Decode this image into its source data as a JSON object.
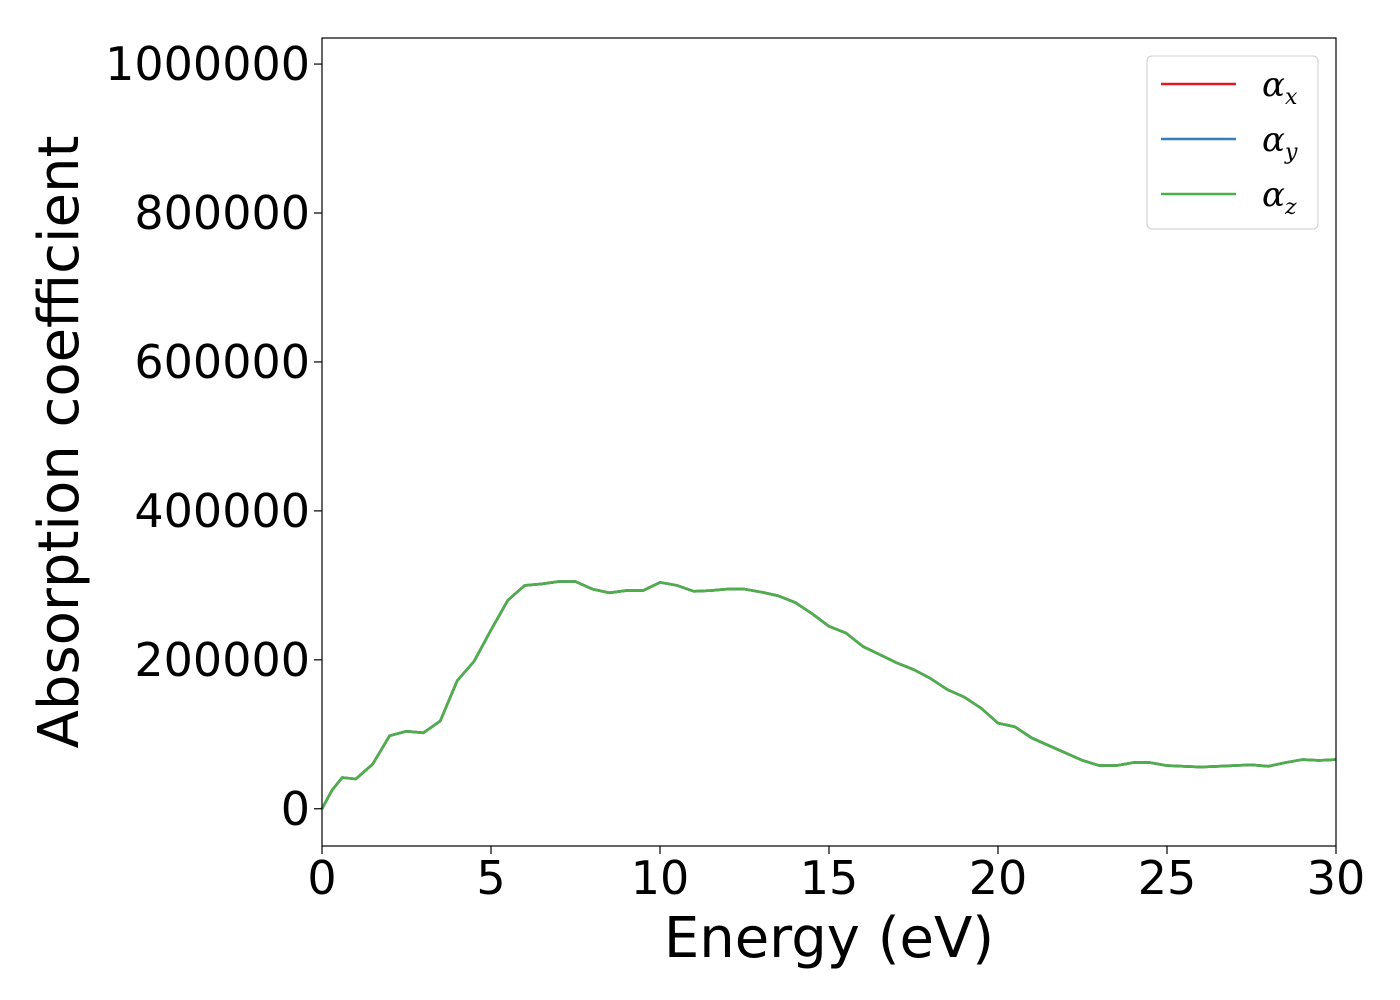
{
  "chart_data": {
    "type": "line",
    "xlabel": "Energy (eV)",
    "ylabel": "Absorption coefficient",
    "xlim": [
      0,
      30
    ],
    "ylim": [
      -50000,
      1035000
    ],
    "xticks": [
      0,
      5,
      10,
      15,
      20,
      25,
      30
    ],
    "xtick_labels": [
      "0",
      "5",
      "10",
      "15",
      "20",
      "25",
      "30"
    ],
    "yticks": [
      0,
      200000,
      400000,
      600000,
      800000,
      1000000
    ],
    "ytick_labels": [
      "0",
      "200000",
      "400000",
      "600000",
      "800000",
      "1000000"
    ],
    "grid": false,
    "legend_position": "top-right",
    "x": [
      0,
      0.3,
      0.6,
      1.0,
      1.5,
      2.0,
      2.5,
      3.0,
      3.5,
      4.0,
      4.5,
      5.0,
      5.5,
      6.0,
      6.5,
      7.0,
      7.5,
      8.0,
      8.5,
      9.0,
      9.5,
      10.0,
      10.5,
      11.0,
      11.5,
      12.0,
      12.5,
      13.0,
      13.5,
      14.0,
      14.5,
      15.0,
      15.5,
      16.0,
      16.5,
      17.0,
      17.5,
      18.0,
      18.5,
      19.0,
      19.5,
      20.0,
      20.5,
      21.0,
      21.5,
      22.0,
      22.5,
      23.0,
      23.5,
      24.0,
      24.5,
      25.0,
      25.5,
      26.0,
      26.5,
      27.0,
      27.5,
      28.0,
      28.5,
      29.0,
      29.5,
      30.0
    ],
    "series": [
      {
        "name": "α_x",
        "color": "#e41a1c",
        "values": [
          0,
          25000,
          42000,
          40000,
          60000,
          98000,
          104000,
          102000,
          118000,
          172000,
          198000,
          240000,
          280000,
          300000,
          302000,
          305000,
          305000,
          295000,
          290000,
          293000,
          293000,
          304000,
          300000,
          292000,
          293000,
          295000,
          295000,
          291000,
          286000,
          277000,
          262000,
          245000,
          236000,
          218000,
          207000,
          196000,
          187000,
          175000,
          160000,
          150000,
          135000,
          115000,
          110000,
          95000,
          85000,
          75000,
          65000,
          58000,
          58000,
          62000,
          62000,
          58000,
          57000,
          56000,
          57000,
          58000,
          59000,
          57000,
          62000,
          66000,
          65000,
          66000
        ]
      },
      {
        "name": "α_y",
        "color": "#377eb8",
        "values": [
          0,
          25000,
          42000,
          40000,
          60000,
          98000,
          104000,
          102000,
          118000,
          172000,
          198000,
          240000,
          280000,
          300000,
          302000,
          305000,
          305000,
          295000,
          290000,
          293000,
          293000,
          304000,
          300000,
          292000,
          293000,
          295000,
          295000,
          291000,
          286000,
          277000,
          262000,
          245000,
          236000,
          218000,
          207000,
          196000,
          187000,
          175000,
          160000,
          150000,
          135000,
          115000,
          110000,
          95000,
          85000,
          75000,
          65000,
          58000,
          58000,
          62000,
          62000,
          58000,
          57000,
          56000,
          57000,
          58000,
          59000,
          57000,
          62000,
          66000,
          65000,
          66000
        ]
      },
      {
        "name": "α_z",
        "color": "#4daf4a",
        "values": [
          0,
          25000,
          42000,
          40000,
          60000,
          98000,
          104000,
          102000,
          118000,
          172000,
          198000,
          240000,
          280000,
          300000,
          302000,
          305000,
          305000,
          295000,
          290000,
          293000,
          293000,
          304000,
          300000,
          292000,
          293000,
          295000,
          295000,
          291000,
          286000,
          277000,
          262000,
          245000,
          236000,
          218000,
          207000,
          196000,
          187000,
          175000,
          160000,
          150000,
          135000,
          115000,
          110000,
          95000,
          85000,
          75000,
          65000,
          58000,
          58000,
          62000,
          62000,
          58000,
          57000,
          56000,
          57000,
          58000,
          59000,
          57000,
          62000,
          66000,
          65000,
          66000
        ]
      }
    ],
    "legend": [
      {
        "symbol": "α",
        "subscript": "x",
        "color": "#e41a1c"
      },
      {
        "symbol": "α",
        "subscript": "y",
        "color": "#377eb8"
      },
      {
        "symbol": "α",
        "subscript": "z",
        "color": "#4daf4a"
      }
    ]
  }
}
